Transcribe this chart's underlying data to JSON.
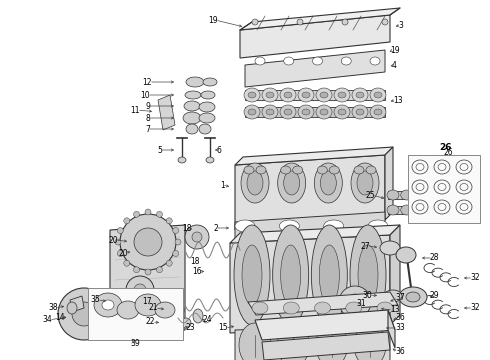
{
  "bg_color": "#ffffff",
  "lc": "#333333",
  "tc": "#000000",
  "fs": 5.5,
  "figsize": [
    4.9,
    3.6
  ],
  "dpi": 100
}
